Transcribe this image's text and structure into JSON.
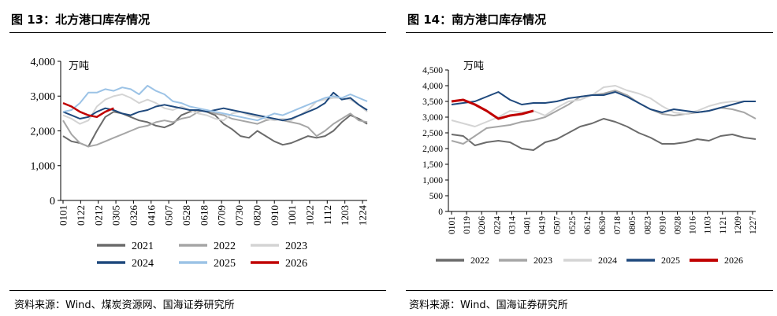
{
  "left": {
    "title": "图 13：北方港口库存情况",
    "source": "资料来源：Wind、煤炭资源网、国海证券研究所",
    "chart_data": {
      "type": "line",
      "unit": "万吨",
      "ylim": [
        0,
        4000
      ],
      "yticks": [
        0,
        1000,
        2000,
        3000,
        4000
      ],
      "ytick_labels": [
        "0",
        "1,000",
        "2,000",
        "3,000",
        "4,000"
      ],
      "xtick_labels": [
        "0101",
        "0122",
        "0212",
        "0305",
        "0326",
        "0416",
        "0507",
        "0528",
        "0618",
        "0709",
        "0730",
        "0820",
        "0910",
        "1001",
        "1022",
        "1112",
        "1203",
        "1224"
      ],
      "grid": false,
      "legend": "bottom",
      "colors": {
        "2021": "#6b6b6b",
        "2022": "#a6a6a6",
        "2023": "#d4d4d4",
        "2024": "#1f497d",
        "2025": "#9cc3e6",
        "2026": "#c00000"
      },
      "series": [
        {
          "name": "2021",
          "values": [
            1850,
            1700,
            1650,
            1550,
            2000,
            2400,
            2550,
            2500,
            2400,
            2300,
            2250,
            2150,
            2100,
            2200,
            2450,
            2550,
            2600,
            2550,
            2450,
            2200,
            2050,
            1850,
            1800,
            2000,
            1850,
            1700,
            1600,
            1650,
            1750,
            1850,
            1800,
            1850,
            2000,
            2250,
            2450,
            2350,
            2200
          ]
        },
        {
          "name": "2022",
          "values": [
            2300,
            1900,
            1650,
            1550,
            1600,
            1700,
            1800,
            1900,
            2000,
            2100,
            2150,
            2250,
            2300,
            2250,
            2350,
            2400,
            2550,
            2600,
            2500,
            2450,
            2350,
            2300,
            2250,
            2200,
            2300,
            2350,
            2300,
            2250,
            2200,
            2100,
            1850,
            2000,
            2200,
            2350,
            2500,
            2300,
            2250
          ]
        },
        {
          "name": "2023",
          "values": [
            2450,
            2350,
            2200,
            2300,
            2700,
            2900,
            3000,
            3050,
            2950,
            2800,
            2900,
            2800,
            2650,
            2600,
            2700,
            2600,
            2500,
            2450,
            2350,
            2300,
            2500,
            2550,
            2450,
            2400,
            2350,
            2300,
            2350,
            2300,
            2450,
            2600,
            2850,
            2900,
            2950,
            2950,
            2900,
            2750,
            2550
          ]
        },
        {
          "name": "2024",
          "values": [
            2550,
            2450,
            2350,
            2400,
            2550,
            2650,
            2600,
            2500,
            2450,
            2550,
            2600,
            2700,
            2750,
            2700,
            2650,
            2600,
            2600,
            2550,
            2600,
            2650,
            2600,
            2550,
            2500,
            2450,
            2400,
            2350,
            2300,
            2350,
            2450,
            2550,
            2650,
            2800,
            3100,
            2900,
            2950,
            2750,
            2600
          ]
        },
        {
          "name": "2025",
          "values": [
            2550,
            2600,
            2800,
            3100,
            3100,
            3200,
            3150,
            3250,
            3200,
            3050,
            3300,
            3150,
            3050,
            2850,
            2800,
            2700,
            2650,
            2600,
            2550,
            2500,
            2450,
            2400,
            2350,
            2300,
            2400,
            2500,
            2450,
            2550,
            2650,
            2750,
            2850,
            2950,
            3000,
            2950,
            3050,
            2950,
            2850
          ]
        },
        {
          "name": "2026",
          "values": [
            2800,
            2700,
            2550,
            2450,
            2400,
            2550,
            2650
          ]
        }
      ]
    }
  },
  "right": {
    "title": "图 14：南方港口库存情况",
    "source": "资料来源：Wind、国海证券研究所",
    "chart_data": {
      "type": "line",
      "unit": "万吨",
      "ylim": [
        0,
        4500
      ],
      "yticks": [
        0,
        500,
        1000,
        1500,
        2000,
        2500,
        3000,
        3500,
        4000,
        4500
      ],
      "ytick_labels": [
        "0",
        "500",
        "1,000",
        "1,500",
        "2,000",
        "2,500",
        "3,000",
        "3,500",
        "4,000",
        "4,500"
      ],
      "xtick_labels": [
        "0101",
        "0119",
        "0206",
        "0224",
        "0314",
        "0401",
        "0419",
        "0507",
        "0525",
        "0612",
        "0630",
        "0718",
        "0805",
        "0823",
        "0910",
        "0928",
        "1016",
        "1103",
        "1121",
        "1209",
        "1227"
      ],
      "grid": false,
      "legend": "bottom",
      "colors": {
        "2022": "#6b6b6b",
        "2023": "#a6a6a6",
        "2024": "#d4d4d4",
        "2025": "#1f497d",
        "2026": "#c00000"
      },
      "series": [
        {
          "name": "2022",
          "values": [
            2450,
            2400,
            2100,
            2200,
            2250,
            2200,
            2000,
            1950,
            2200,
            2300,
            2500,
            2700,
            2800,
            2950,
            2850,
            2700,
            2500,
            2350,
            2150,
            2150,
            2200,
            2300,
            2250,
            2400,
            2450,
            2350,
            2300
          ]
        },
        {
          "name": "2023",
          "values": [
            2250,
            2150,
            2400,
            2650,
            2700,
            2750,
            2850,
            2900,
            3000,
            3200,
            3400,
            3650,
            3700,
            3750,
            3850,
            3700,
            3450,
            3250,
            3100,
            3050,
            3100,
            3150,
            3200,
            3300,
            3250,
            3150,
            2950
          ]
        },
        {
          "name": "2024",
          "values": [
            2900,
            2800,
            2700,
            2850,
            3000,
            3200,
            3150,
            3200,
            3050,
            3300,
            3500,
            3550,
            3700,
            3950,
            4000,
            3850,
            3750,
            3600,
            3350,
            3150,
            3100,
            3200,
            3350,
            3450,
            3500,
            3500,
            3500
          ]
        },
        {
          "name": "2025",
          "values": [
            3400,
            3450,
            3500,
            3650,
            3800,
            3550,
            3400,
            3450,
            3450,
            3500,
            3600,
            3650,
            3700,
            3700,
            3800,
            3650,
            3450,
            3250,
            3150,
            3250,
            3200,
            3150,
            3200,
            3300,
            3400,
            3500,
            3500
          ]
        },
        {
          "name": "2026",
          "values": [
            3500,
            3550,
            3400,
            3200,
            2950,
            3050,
            3100,
            3200
          ]
        }
      ]
    }
  }
}
